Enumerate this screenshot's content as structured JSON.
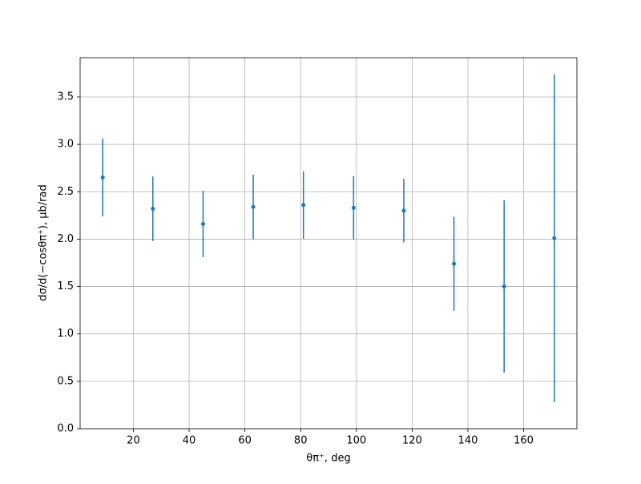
{
  "chart_data": {
    "type": "errorbar",
    "xlabel": "θπ⁺, deg",
    "ylabel": "dσ/d(−cosθπ⁺), μb/rad",
    "x": [
      9,
      27,
      45,
      63,
      81,
      99,
      117,
      135,
      153,
      171
    ],
    "values": [
      2.65,
      2.32,
      2.16,
      2.34,
      2.36,
      2.33,
      2.3,
      1.74,
      1.5,
      2.01
    ],
    "errors": [
      0.41,
      0.34,
      0.35,
      0.34,
      0.355,
      0.335,
      0.335,
      0.495,
      0.91,
      1.73
    ],
    "color": "#1f77b4",
    "xlim": [
      0.9,
      179.1
    ],
    "xticks": [
      20,
      40,
      60,
      80,
      100,
      120,
      140,
      160
    ],
    "ylim": [
      0,
      3.914
    ],
    "yticks": [
      {
        "value": 0,
        "label": "0.0"
      },
      {
        "value": 0.5,
        "label": "0.5"
      },
      {
        "value": 1,
        "label": "1.0"
      },
      {
        "value": 1.5,
        "label": "1.5"
      },
      {
        "value": 2,
        "label": "2.0"
      },
      {
        "value": 2.5,
        "label": "2.5"
      },
      {
        "value": 3,
        "label": "3.0"
      },
      {
        "value": 3.5,
        "label": "3.5"
      }
    ],
    "grid": true
  }
}
